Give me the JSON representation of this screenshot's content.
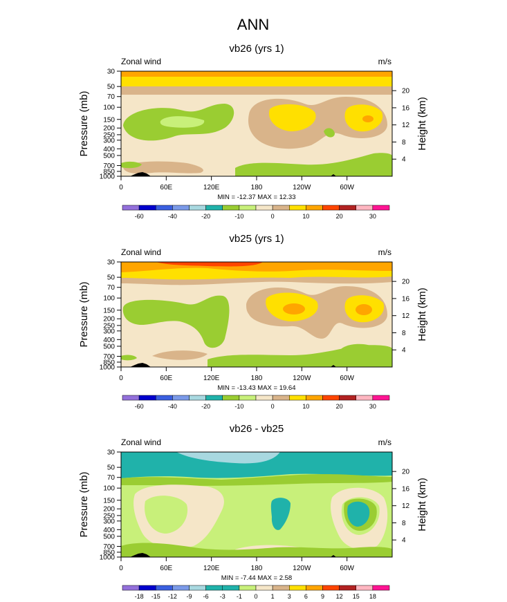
{
  "figure": {
    "title": "ANN"
  },
  "colors": {
    "abs_palette": [
      "#9370db",
      "#0000cd",
      "#3a5fe0",
      "#7b9ae8",
      "#a8d8e0",
      "#20b2aa",
      "#9acd32",
      "#c8f07a",
      "#f5e6c8",
      "#d9b48a",
      "#ffe000",
      "#ffa500",
      "#ff4500",
      "#b22222",
      "#ffb6c1",
      "#ff1493"
    ],
    "diff_palette": [
      "#9370db",
      "#0000cd",
      "#3a5fe0",
      "#7b9ae8",
      "#a8d8e0",
      "#20b2aa",
      "#20b2aa",
      "#c8f07a",
      "#f5e6c8",
      "#d9b48a",
      "#ffe000",
      "#ffa500",
      "#ff4500",
      "#b22222",
      "#ffb6c1",
      "#ff1493"
    ]
  },
  "chart_data": [
    {
      "type": "contour",
      "title": "vb26 (yrs 1)",
      "left_label": "Zonal wind",
      "right_label": "m/s",
      "ylabel": "Pressure (mb)",
      "ylabel_right": "Height (km)",
      "x_ticks": [
        "0",
        "60E",
        "120E",
        "180",
        "120W",
        "60W"
      ],
      "y_ticks": [
        "30",
        "50",
        "70",
        "100",
        "150",
        "200",
        "250",
        "300",
        "400",
        "500",
        "700",
        "850",
        "1000"
      ],
      "height_ticks": [
        "20",
        "16",
        "12",
        "8",
        "4"
      ],
      "y_scale": "log",
      "minmax": "MIN = -12.37  MAX =  12.33",
      "colorbar_labels": [
        "-60",
        "-40",
        "-20",
        "-10",
        "0",
        "10",
        "20",
        "30"
      ]
    },
    {
      "type": "contour",
      "title": "vb25 (yrs 1)",
      "left_label": "Zonal wind",
      "right_label": "m/s",
      "ylabel": "Pressure (mb)",
      "ylabel_right": "Height (km)",
      "x_ticks": [
        "0",
        "60E",
        "120E",
        "180",
        "120W",
        "60W"
      ],
      "y_ticks": [
        "30",
        "50",
        "70",
        "100",
        "150",
        "200",
        "250",
        "300",
        "400",
        "500",
        "700",
        "850",
        "1000"
      ],
      "height_ticks": [
        "20",
        "16",
        "12",
        "8",
        "4"
      ],
      "y_scale": "log",
      "minmax": "MIN = -13.43  MAX =  19.64",
      "colorbar_labels": [
        "-60",
        "-40",
        "-20",
        "-10",
        "0",
        "10",
        "20",
        "30"
      ]
    },
    {
      "type": "contour",
      "title": "vb26 - vb25",
      "left_label": "Zonal wind",
      "right_label": "m/s",
      "ylabel": "Pressure (mb)",
      "ylabel_right": "Height (km)",
      "x_ticks": [
        "0",
        "60E",
        "120E",
        "180",
        "120W",
        "60W"
      ],
      "y_ticks": [
        "30",
        "50",
        "70",
        "100",
        "150",
        "200",
        "250",
        "300",
        "400",
        "500",
        "700",
        "850",
        "1000"
      ],
      "height_ticks": [
        "20",
        "16",
        "12",
        "8",
        "4"
      ],
      "y_scale": "log",
      "minmax": "MIN = -7.44  MAX =  2.58",
      "colorbar_labels": [
        "-18",
        "-15",
        "-12",
        "-9",
        "-6",
        "-3",
        "-1",
        "0",
        "1",
        "3",
        "6",
        "9",
        "12",
        "15",
        "18"
      ]
    }
  ]
}
